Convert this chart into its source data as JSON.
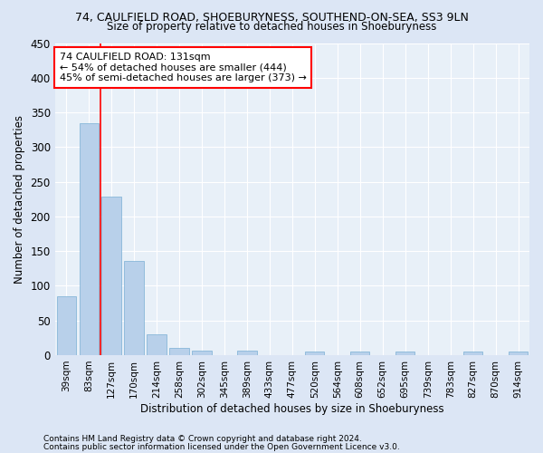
{
  "title": "74, CAULFIELD ROAD, SHOEBURYNESS, SOUTHEND-ON-SEA, SS3 9LN",
  "subtitle": "Size of property relative to detached houses in Shoeburyness",
  "xlabel": "Distribution of detached houses by size in Shoeburyness",
  "ylabel": "Number of detached properties",
  "categories": [
    "39sqm",
    "83sqm",
    "127sqm",
    "170sqm",
    "214sqm",
    "258sqm",
    "302sqm",
    "345sqm",
    "389sqm",
    "433sqm",
    "477sqm",
    "520sqm",
    "564sqm",
    "608sqm",
    "652sqm",
    "695sqm",
    "739sqm",
    "783sqm",
    "827sqm",
    "870sqm",
    "914sqm"
  ],
  "values": [
    85,
    335,
    229,
    136,
    30,
    11,
    6,
    0,
    6,
    0,
    0,
    5,
    0,
    5,
    0,
    5,
    0,
    0,
    5,
    0,
    5
  ],
  "bar_color": "#b8d0ea",
  "bar_edge_color": "#7aafd4",
  "annotation_title": "74 CAULFIELD ROAD: 131sqm",
  "annotation_line1": "← 54% of detached houses are smaller (444)",
  "annotation_line2": "45% of semi-detached houses are larger (373) →",
  "vline_x_idx": 1.5,
  "ylim": [
    0,
    450
  ],
  "yticks": [
    0,
    50,
    100,
    150,
    200,
    250,
    300,
    350,
    400,
    450
  ],
  "footer1": "Contains HM Land Registry data © Crown copyright and database right 2024.",
  "footer2": "Contains public sector information licensed under the Open Government Licence v3.0.",
  "background_color": "#dce6f5",
  "plot_bg_color": "#e8f0f8"
}
